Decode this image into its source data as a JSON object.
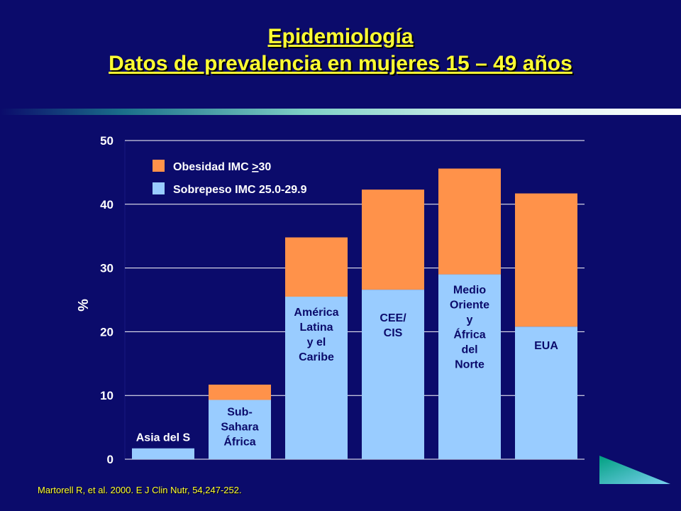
{
  "title": {
    "line1": "Epidemiología",
    "line2": "Datos de prevalencia en mujeres 15 – 49 años"
  },
  "source": "Martorell R, et al. 2000.  E J Clin Nutr, 54,247-252.",
  "colors": {
    "background": "#0b0b6b",
    "title": "#ffff33",
    "obesity": "#ff924a",
    "overweight": "#99ccff"
  },
  "chart_data": {
    "type": "bar",
    "stacked": true,
    "categories": [
      "Asia del S",
      "Sub-\nSahara\nÁfrica",
      "América\nLatina\ny el\nCaribe",
      "CEE/\nCIS",
      "Medio\nOriente\ny\nÁfrica\ndel\nNorte",
      "EUA"
    ],
    "series": [
      {
        "name": "Sobrepeso IMC 25.0-29.9",
        "color": "#99ccff",
        "values": [
          1.7,
          9.3,
          25.5,
          26.6,
          29.0,
          20.8
        ]
      },
      {
        "name": "Obesidad IMC >30",
        "color": "#ff924a",
        "values": [
          0.0,
          2.4,
          9.3,
          15.7,
          16.6,
          20.9
        ]
      }
    ],
    "legend_labels": {
      "obesity_prefix": "Obesidad IMC ",
      "obesity_symbol": ">",
      "obesity_value": "30",
      "overweight": "Sobrepeso IMC 25.0-29.9"
    },
    "ylabel": "%",
    "xlabel": "",
    "ylim": [
      0,
      50
    ],
    "yticks": [
      "0",
      "10",
      "20",
      "30",
      "40",
      "50"
    ],
    "grid": true,
    "legend_position": "top-left"
  }
}
